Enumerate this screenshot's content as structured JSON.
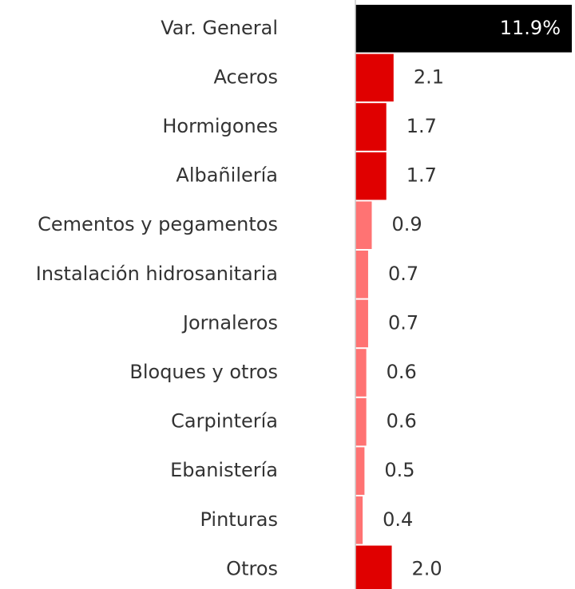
{
  "chart_data": {
    "type": "bar",
    "orientation": "horizontal",
    "categories": [
      "Var. General",
      "Aceros",
      "Hormigones",
      "Albañilería",
      "Cementos y pegamentos",
      "Instalación hidrosanitaria",
      "Jornaleros",
      "Bloques y otros",
      "Carpintería",
      "Ebanistería",
      "Pinturas",
      "Otros"
    ],
    "values": [
      11.9,
      2.1,
      1.7,
      1.7,
      0.9,
      0.7,
      0.7,
      0.6,
      0.6,
      0.5,
      0.4,
      2.0
    ],
    "value_labels": [
      "11.9%",
      "2.1",
      "1.7",
      "1.7",
      "0.9",
      "0.7",
      "0.7",
      "0.6",
      "0.6",
      "0.5",
      "0.4",
      "2.0"
    ],
    "colors": [
      "#000000",
      "#e00000",
      "#e00000",
      "#e00000",
      "#ff7373",
      "#ff7373",
      "#ff7373",
      "#ff7373",
      "#ff7373",
      "#ff7373",
      "#ff7373",
      "#e00000"
    ]
  }
}
